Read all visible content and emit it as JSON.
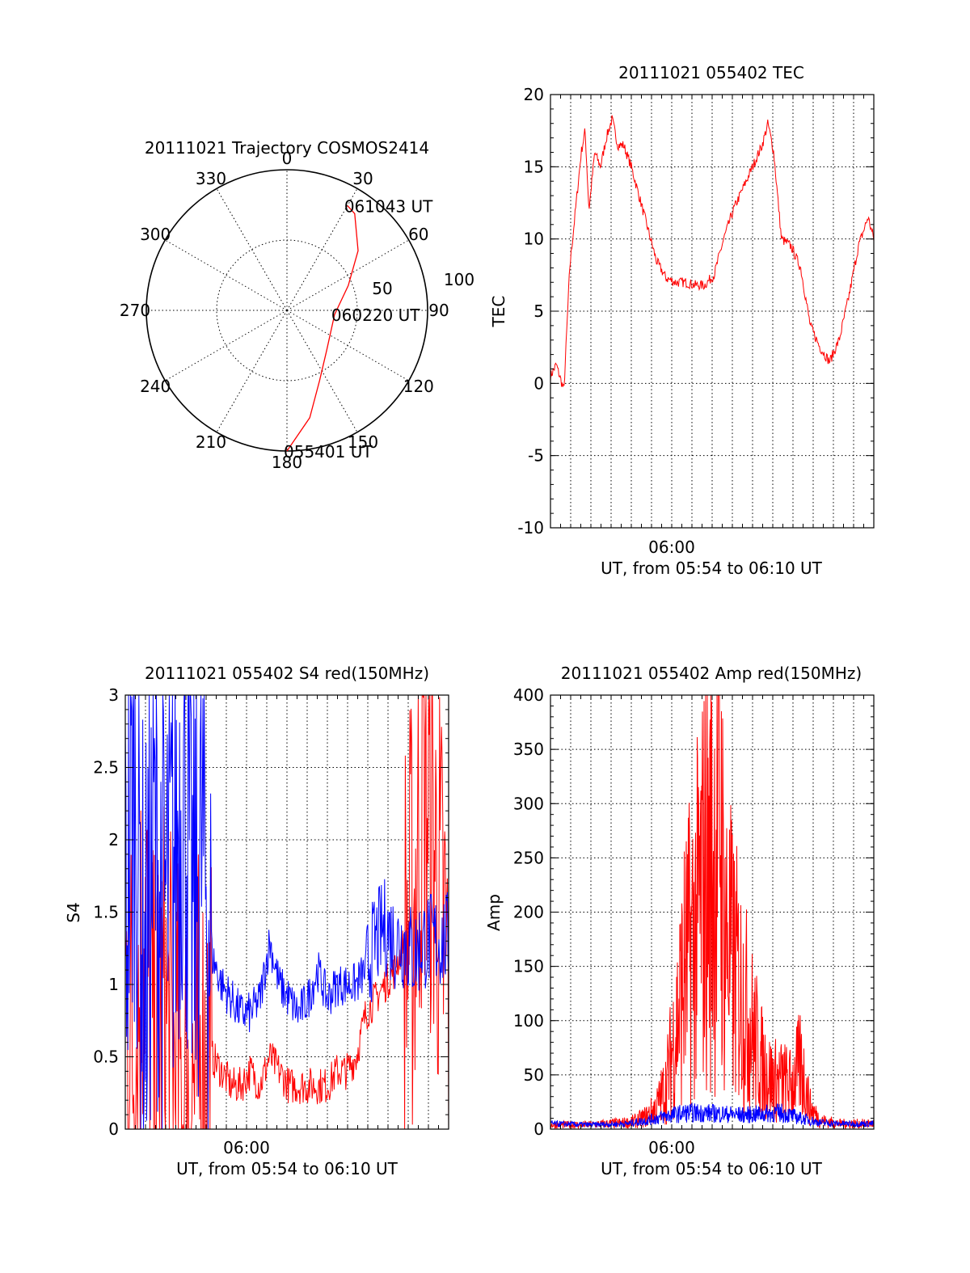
{
  "chart_data": [
    {
      "type": "polar",
      "title": "20111021 Trajectory COSMOS2414",
      "angle_ticks": [
        "0",
        "30",
        "60",
        "90",
        "120",
        "150",
        "180",
        "210",
        "240",
        "270",
        "300",
        "330"
      ],
      "radial_ticks": [
        "50",
        "100"
      ],
      "colors": {
        "track": "#ff0000"
      },
      "track": [
        {
          "az": 180,
          "r": 100
        },
        {
          "az": 168,
          "r": 78
        },
        {
          "az": 155,
          "r": 55
        },
        {
          "az": 135,
          "r": 40
        },
        {
          "az": 95,
          "r": 34
        },
        {
          "az": 68,
          "r": 47
        },
        {
          "az": 50,
          "r": 66
        },
        {
          "az": 35,
          "r": 84
        },
        {
          "az": 30,
          "r": 86
        }
      ],
      "annotations": [
        {
          "text": "061043 UT",
          "az": 30,
          "r": 86
        },
        {
          "text": "060220 UT",
          "az": 95,
          "r": 34
        },
        {
          "text": "055401 UT",
          "az": 180,
          "r": 100
        }
      ]
    },
    {
      "type": "line",
      "title": "20111021 055402 TEC",
      "xlabel": "UT, from 05:54 to 06:10 UT",
      "ylabel": "TEC",
      "x_tick_labels": [
        "06:00"
      ],
      "ylim": [
        -10,
        20
      ],
      "y_ticks": [
        -10,
        -5,
        0,
        5,
        10,
        15,
        20
      ],
      "colors": {
        "series": "#ff0000"
      },
      "series": [
        {
          "values": [
            [
              0,
              0.5
            ],
            [
              0.3,
              1.3
            ],
            [
              0.7,
              -0.5
            ],
            [
              1.0,
              8
            ],
            [
              1.3,
              12
            ],
            [
              1.6,
              16
            ],
            [
              1.8,
              17.5
            ],
            [
              2.0,
              12
            ],
            [
              2.3,
              16
            ],
            [
              2.6,
              15
            ],
            [
              2.9,
              17
            ],
            [
              3.2,
              18.3
            ],
            [
              3.5,
              16.5
            ],
            [
              3.8,
              16.5
            ],
            [
              4.2,
              15
            ],
            [
              4.6,
              13
            ],
            [
              5.0,
              11
            ],
            [
              5.5,
              8.5
            ],
            [
              6.0,
              7.3
            ],
            [
              6.5,
              7
            ],
            [
              7.0,
              7
            ],
            [
              7.5,
              6.8
            ],
            [
              8.0,
              6.8
            ],
            [
              8.5,
              7.5
            ],
            [
              9.0,
              10
            ],
            [
              9.5,
              12
            ],
            [
              10.0,
              13.5
            ],
            [
              10.5,
              15
            ],
            [
              11.0,
              16.5
            ],
            [
              11.3,
              18
            ],
            [
              11.6,
              16
            ],
            [
              12.0,
              10
            ],
            [
              12.5,
              9.5
            ],
            [
              13.0,
              8
            ],
            [
              13.5,
              4
            ],
            [
              14.0,
              2.5
            ],
            [
              14.5,
              1.5
            ],
            [
              15.0,
              3
            ],
            [
              15.5,
              6
            ],
            [
              16.0,
              9.5
            ],
            [
              16.5,
              11.5
            ],
            [
              16.8,
              10
            ]
          ]
        }
      ]
    },
    {
      "type": "line",
      "title": "20111021 055402 S4 red(150MHz)",
      "xlabel": "UT, from 05:54 to 06:10 UT",
      "ylabel": "S4",
      "x_tick_labels": [
        "06:00"
      ],
      "ylim": [
        0,
        3
      ],
      "y_ticks": [
        "0",
        "0.5",
        "1",
        "1.5",
        "2",
        "2.5",
        "3"
      ],
      "colors": {
        "red": "#ff0000",
        "blue": "#0000ff"
      },
      "series": [
        {
          "values": [
            [
              0,
              1.5
            ],
            [
              0.5,
              2.5
            ],
            [
              1.0,
              1.0
            ],
            [
              1.5,
              2.0
            ],
            [
              2.0,
              1.5
            ],
            [
              2.5,
              1.8
            ],
            [
              3.0,
              2.5
            ],
            [
              3.5,
              1.5
            ],
            [
              4.0,
              2.0
            ],
            [
              4.5,
              1.2
            ],
            [
              5.0,
              1.0
            ],
            [
              5.5,
              0.9
            ],
            [
              6.0,
              0.8
            ],
            [
              6.5,
              0.8
            ],
            [
              7.0,
              0.9
            ],
            [
              7.5,
              1.3
            ],
            [
              8.0,
              1.0
            ],
            [
              8.5,
              0.9
            ],
            [
              9.0,
              0.8
            ],
            [
              9.5,
              0.9
            ],
            [
              10.0,
              1.1
            ],
            [
              10.5,
              0.9
            ],
            [
              11.0,
              1.0
            ],
            [
              11.5,
              1.0
            ],
            [
              12.0,
              1.0
            ],
            [
              12.5,
              1.1
            ],
            [
              13.0,
              1.3
            ],
            [
              13.5,
              1.4
            ],
            [
              14.0,
              1.3
            ],
            [
              14.5,
              1.3
            ],
            [
              15.0,
              1.2
            ],
            [
              15.5,
              1.3
            ],
            [
              16.0,
              1.3
            ],
            [
              16.8,
              1.3
            ]
          ]
        },
        {
          "values": [
            [
              0,
              1.0
            ],
            [
              0.5,
              0.5
            ],
            [
              1.0,
              1.5
            ],
            [
              1.5,
              0.3
            ],
            [
              2.0,
              0.8
            ],
            [
              2.5,
              0.4
            ],
            [
              3.0,
              0.2
            ],
            [
              3.5,
              0.3
            ],
            [
              4.0,
              0.4
            ],
            [
              4.5,
              0.5
            ],
            [
              5.0,
              0.4
            ],
            [
              5.5,
              0.3
            ],
            [
              6.0,
              0.3
            ],
            [
              6.5,
              0.4
            ],
            [
              7.0,
              0.3
            ],
            [
              7.5,
              0.5
            ],
            [
              8.0,
              0.4
            ],
            [
              8.5,
              0.3
            ],
            [
              9.0,
              0.3
            ],
            [
              9.5,
              0.3
            ],
            [
              10.0,
              0.3
            ],
            [
              10.5,
              0.3
            ],
            [
              11.0,
              0.4
            ],
            [
              11.5,
              0.4
            ],
            [
              12.0,
              0.5
            ],
            [
              12.5,
              0.8
            ],
            [
              13.0,
              0.9
            ],
            [
              13.5,
              1.0
            ],
            [
              14.0,
              1.1
            ],
            [
              14.5,
              1.3
            ],
            [
              15.0,
              1.5
            ],
            [
              15.5,
              2.5
            ],
            [
              16.0,
              2.0
            ],
            [
              16.8,
              1.0
            ]
          ]
        }
      ]
    },
    {
      "type": "line",
      "title": "20111021 055402 Amp red(150MHz)",
      "xlabel": "UT, from 05:54 to 06:10 UT",
      "ylabel": "Amp",
      "x_tick_labels": [
        "06:00"
      ],
      "ylim": [
        0,
        400
      ],
      "y_ticks": [
        0,
        50,
        100,
        150,
        200,
        250,
        300,
        350,
        400
      ],
      "colors": {
        "red": "#ff0000",
        "blue": "#0000ff"
      },
      "series": [
        {
          "values": [
            [
              0,
              4
            ],
            [
              1,
              4
            ],
            [
              2,
              4
            ],
            [
              3,
              5
            ],
            [
              4,
              6
            ],
            [
              4.5,
              8
            ],
            [
              5.0,
              12
            ],
            [
              5.5,
              20
            ],
            [
              6.0,
              40
            ],
            [
              6.5,
              90
            ],
            [
              7.0,
              150
            ],
            [
              7.5,
              180
            ],
            [
              8.0,
              230
            ],
            [
              8.5,
              250
            ],
            [
              8.8,
              310
            ],
            [
              9.0,
              190
            ],
            [
              9.5,
              150
            ],
            [
              10.0,
              120
            ],
            [
              10.5,
              90
            ],
            [
              11.0,
              60
            ],
            [
              11.5,
              45
            ],
            [
              12.0,
              45
            ],
            [
              12.5,
              40
            ],
            [
              13.0,
              60
            ],
            [
              13.5,
              20
            ],
            [
              14.0,
              8
            ],
            [
              15.0,
              5
            ],
            [
              16.0,
              5
            ],
            [
              16.8,
              5
            ]
          ]
        },
        {
          "values": [
            [
              0,
              5
            ],
            [
              2,
              4
            ],
            [
              4,
              5
            ],
            [
              5,
              8
            ],
            [
              6,
              12
            ],
            [
              7,
              15
            ],
            [
              8,
              15
            ],
            [
              9,
              14
            ],
            [
              10,
              13
            ],
            [
              11,
              14
            ],
            [
              12,
              15
            ],
            [
              13,
              10
            ],
            [
              14,
              6
            ],
            [
              15,
              5
            ],
            [
              16.8,
              5
            ]
          ]
        }
      ]
    }
  ]
}
